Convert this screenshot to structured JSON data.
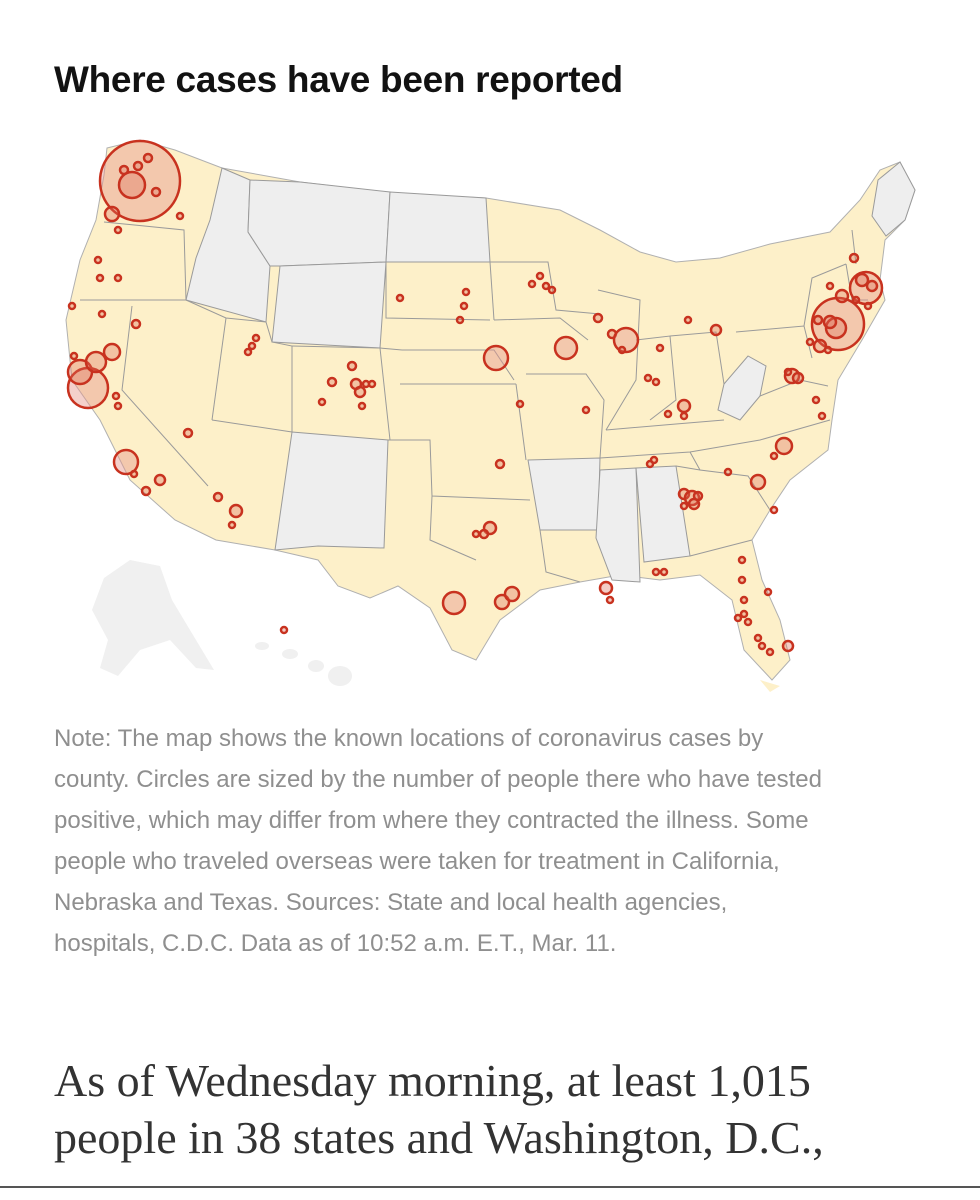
{
  "headline": "Where cases have been reported",
  "note_lines": [
    "Note: The map shows the known locations of coronavirus cases by",
    "county. Circles are sized by the number of people there who have tested",
    "positive, which may differ from where they contracted the illness. Some",
    "people who traveled overseas were taken for treatment in California,",
    "Nebraska and Texas. Sources: State and local health agencies,",
    "hospitals, C.D.C. Data as of 10:52 a.m. E.T., Mar. 11."
  ],
  "lede_lines": [
    "As of Wednesday morning, at least 1,015",
    "people in 38 states and Washington, D.C.,"
  ],
  "colors": {
    "state_with_cases": "#fdf0c9",
    "state_without_cases": "#eeeeee",
    "alaska_hawaii": "#f0f0f0",
    "state_border": "#9a9a9a",
    "circle_stroke": "#c8321f",
    "circle_fill": "rgba(222,110,90,0.35)"
  }
}
